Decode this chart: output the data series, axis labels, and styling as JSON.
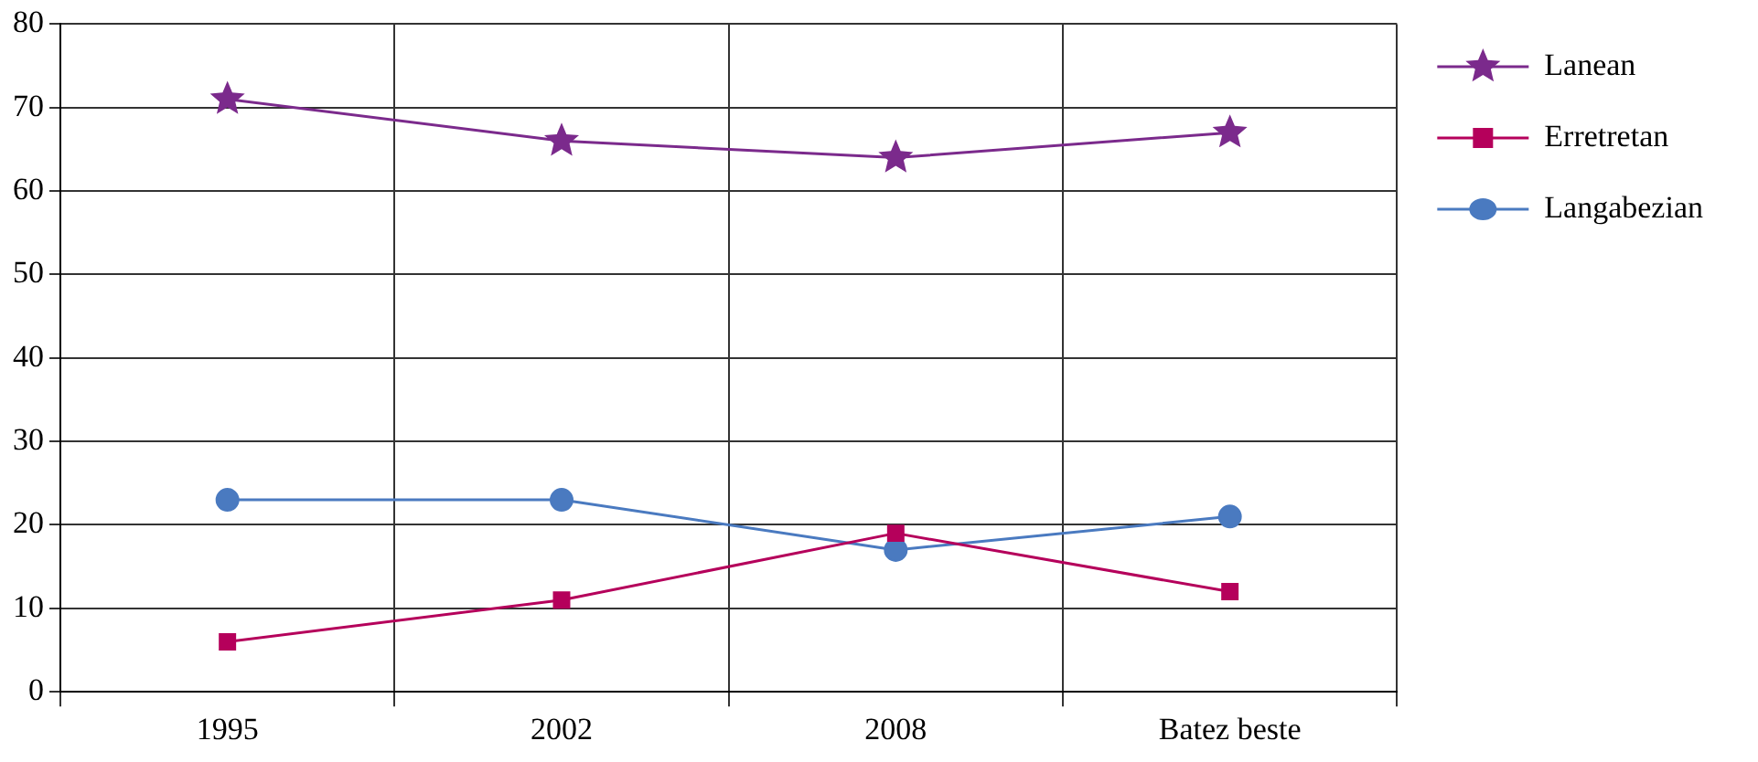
{
  "chart_data": {
    "type": "line",
    "categories": [
      "1995",
      "2002",
      "2008",
      "Batez beste"
    ],
    "series": [
      {
        "name": "Lanean",
        "color": "#7b2a8c",
        "marker": "star",
        "values": [
          71,
          66,
          64,
          67
        ]
      },
      {
        "name": "Erretretan",
        "color": "#b5005b",
        "marker": "square",
        "values": [
          6,
          11,
          19,
          12
        ]
      },
      {
        "name": "Langabezian",
        "color": "#4a7ac0",
        "marker": "circle",
        "values": [
          23,
          23,
          17,
          21
        ]
      }
    ],
    "ylim": [
      0,
      80
    ],
    "yticks": [
      0,
      10,
      20,
      30,
      40,
      50,
      60,
      70,
      80
    ],
    "grid": true,
    "legend": "top right",
    "line_style": "solid"
  }
}
